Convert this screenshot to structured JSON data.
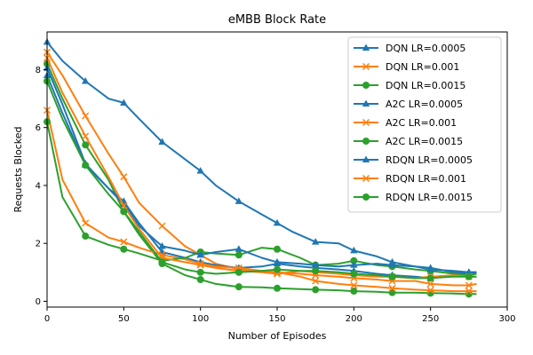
{
  "chart_data": {
    "type": "line",
    "title": "eMBB Block Rate",
    "xlabel": "Number of Episodes",
    "ylabel": "Requests Blocked",
    "xlim": [
      0,
      300
    ],
    "ylim": [
      -0.2,
      9.3
    ],
    "xticks": [
      0,
      50,
      100,
      150,
      200,
      250,
      300
    ],
    "yticks": [
      0,
      2,
      4,
      6,
      8
    ],
    "grid": false,
    "legend_position": "top-right",
    "colors": {
      "blue": "#1f77b4",
      "orange": "#ff7f0e",
      "green": "#2ca02c"
    },
    "series": [
      {
        "name": "DQN LR=0.0005",
        "color": "#1f77b4",
        "marker": "triangle",
        "points": [
          [
            0,
            8.95
          ],
          [
            10,
            8.3
          ],
          [
            25,
            7.6
          ],
          [
            40,
            7.0
          ],
          [
            50,
            6.85
          ],
          [
            60,
            6.3
          ],
          [
            75,
            5.5
          ],
          [
            90,
            4.9
          ],
          [
            100,
            4.5
          ],
          [
            110,
            4.0
          ],
          [
            125,
            3.45
          ],
          [
            140,
            3.0
          ],
          [
            150,
            2.7
          ],
          [
            160,
            2.4
          ],
          [
            175,
            2.05
          ],
          [
            190,
            2.0
          ],
          [
            200,
            1.75
          ],
          [
            215,
            1.55
          ],
          [
            225,
            1.35
          ],
          [
            240,
            1.2
          ],
          [
            250,
            1.15
          ],
          [
            265,
            1.0
          ],
          [
            275,
            0.95
          ],
          [
            280,
            0.95
          ]
        ]
      },
      {
        "name": "DQN LR=0.001",
        "color": "#ff7f0e",
        "marker": "x",
        "points": [
          [
            0,
            8.6
          ],
          [
            10,
            7.8
          ],
          [
            25,
            6.4
          ],
          [
            40,
            5.1
          ],
          [
            50,
            4.3
          ],
          [
            60,
            3.4
          ],
          [
            75,
            2.6
          ],
          [
            90,
            1.9
          ],
          [
            100,
            1.6
          ],
          [
            110,
            1.3
          ],
          [
            125,
            1.1
          ],
          [
            140,
            1.05
          ],
          [
            150,
            1.0
          ],
          [
            165,
            0.95
          ],
          [
            175,
            0.9
          ],
          [
            190,
            0.85
          ],
          [
            200,
            0.8
          ],
          [
            215,
            0.75
          ],
          [
            225,
            0.7
          ],
          [
            240,
            0.7
          ],
          [
            250,
            0.6
          ],
          [
            265,
            0.55
          ],
          [
            275,
            0.55
          ],
          [
            280,
            0.6
          ]
        ]
      },
      {
        "name": "DQN LR=0.0015",
        "color": "#2ca02c",
        "marker": "circle",
        "points": [
          [
            0,
            8.2
          ],
          [
            10,
            7.0
          ],
          [
            25,
            5.4
          ],
          [
            40,
            4.2
          ],
          [
            50,
            3.1
          ],
          [
            60,
            2.3
          ],
          [
            75,
            1.3
          ],
          [
            90,
            0.9
          ],
          [
            100,
            0.75
          ],
          [
            110,
            0.6
          ],
          [
            125,
            0.5
          ],
          [
            140,
            0.48
          ],
          [
            150,
            0.45
          ],
          [
            165,
            0.42
          ],
          [
            175,
            0.4
          ],
          [
            190,
            0.38
          ],
          [
            200,
            0.35
          ],
          [
            215,
            0.33
          ],
          [
            225,
            0.3
          ],
          [
            240,
            0.3
          ],
          [
            250,
            0.28
          ],
          [
            265,
            0.27
          ],
          [
            275,
            0.25
          ],
          [
            280,
            0.25
          ]
        ]
      },
      {
        "name": "A2C LR=0.0005",
        "color": "#1f77b4",
        "marker": "triangle",
        "points": [
          [
            0,
            7.8
          ],
          [
            10,
            6.5
          ],
          [
            25,
            4.7
          ],
          [
            40,
            3.9
          ],
          [
            50,
            3.45
          ],
          [
            60,
            2.7
          ],
          [
            75,
            1.7
          ],
          [
            90,
            1.5
          ],
          [
            100,
            1.35
          ],
          [
            110,
            1.25
          ],
          [
            125,
            1.15
          ],
          [
            140,
            1.2
          ],
          [
            150,
            1.3
          ],
          [
            165,
            1.2
          ],
          [
            175,
            1.15
          ],
          [
            190,
            1.1
          ],
          [
            200,
            1.05
          ],
          [
            215,
            0.95
          ],
          [
            225,
            0.9
          ],
          [
            240,
            0.85
          ],
          [
            250,
            0.8
          ],
          [
            265,
            0.9
          ],
          [
            275,
            1.0
          ],
          [
            280,
            1.0
          ]
        ]
      },
      {
        "name": "A2C LR=0.001",
        "color": "#ff7f0e",
        "marker": "x",
        "points": [
          [
            0,
            6.6
          ],
          [
            10,
            4.2
          ],
          [
            25,
            2.7
          ],
          [
            40,
            2.2
          ],
          [
            50,
            2.05
          ],
          [
            60,
            1.85
          ],
          [
            75,
            1.6
          ],
          [
            90,
            1.45
          ],
          [
            100,
            1.3
          ],
          [
            110,
            1.2
          ],
          [
            125,
            1.15
          ],
          [
            140,
            1.05
          ],
          [
            150,
            1.0
          ],
          [
            165,
            0.85
          ],
          [
            175,
            0.7
          ],
          [
            190,
            0.6
          ],
          [
            200,
            0.55
          ],
          [
            215,
            0.5
          ],
          [
            225,
            0.45
          ],
          [
            240,
            0.4
          ],
          [
            250,
            0.38
          ],
          [
            265,
            0.35
          ],
          [
            275,
            0.35
          ],
          [
            280,
            0.35
          ]
        ]
      },
      {
        "name": "A2C LR=0.0015",
        "color": "#2ca02c",
        "marker": "circle",
        "points": [
          [
            0,
            6.2
          ],
          [
            10,
            3.6
          ],
          [
            25,
            2.25
          ],
          [
            40,
            1.95
          ],
          [
            50,
            1.8
          ],
          [
            60,
            1.65
          ],
          [
            75,
            1.4
          ],
          [
            90,
            1.5
          ],
          [
            100,
            1.7
          ],
          [
            110,
            1.65
          ],
          [
            125,
            1.6
          ],
          [
            140,
            1.85
          ],
          [
            150,
            1.8
          ],
          [
            165,
            1.5
          ],
          [
            175,
            1.25
          ],
          [
            190,
            1.3
          ],
          [
            200,
            1.4
          ],
          [
            215,
            1.25
          ],
          [
            225,
            1.2
          ],
          [
            240,
            1.1
          ],
          [
            250,
            1.05
          ],
          [
            265,
            0.95
          ],
          [
            275,
            0.9
          ],
          [
            280,
            0.95
          ]
        ]
      },
      {
        "name": "RDQN LR=0.0005",
        "color": "#1f77b4",
        "marker": "triangle",
        "points": [
          [
            0,
            8.05
          ],
          [
            10,
            6.8
          ],
          [
            25,
            4.75
          ],
          [
            40,
            3.9
          ],
          [
            50,
            3.35
          ],
          [
            60,
            2.6
          ],
          [
            75,
            1.9
          ],
          [
            90,
            1.75
          ],
          [
            100,
            1.6
          ],
          [
            110,
            1.7
          ],
          [
            125,
            1.8
          ],
          [
            140,
            1.5
          ],
          [
            150,
            1.35
          ],
          [
            165,
            1.3
          ],
          [
            175,
            1.25
          ],
          [
            190,
            1.2
          ],
          [
            200,
            1.25
          ],
          [
            215,
            1.3
          ],
          [
            225,
            1.25
          ],
          [
            240,
            1.2
          ],
          [
            250,
            1.1
          ],
          [
            265,
            1.05
          ],
          [
            275,
            1.0
          ],
          [
            280,
            1.0
          ]
        ]
      },
      {
        "name": "RDQN LR=0.001",
        "color": "#ff7f0e",
        "marker": "x",
        "points": [
          [
            0,
            8.4
          ],
          [
            10,
            7.2
          ],
          [
            25,
            5.7
          ],
          [
            40,
            4.3
          ],
          [
            50,
            3.3
          ],
          [
            60,
            2.5
          ],
          [
            75,
            1.5
          ],
          [
            90,
            1.35
          ],
          [
            100,
            1.25
          ],
          [
            110,
            1.15
          ],
          [
            125,
            1.05
          ],
          [
            140,
            1.0
          ],
          [
            150,
            0.95
          ],
          [
            165,
            1.05
          ],
          [
            175,
            1.0
          ],
          [
            190,
            0.95
          ],
          [
            200,
            0.9
          ],
          [
            215,
            0.85
          ],
          [
            225,
            0.85
          ],
          [
            240,
            0.8
          ],
          [
            250,
            0.85
          ],
          [
            265,
            0.9
          ],
          [
            275,
            0.85
          ],
          [
            280,
            0.85
          ]
        ]
      },
      {
        "name": "RDQN LR=0.0015",
        "color": "#2ca02c",
        "marker": "circle",
        "points": [
          [
            0,
            7.6
          ],
          [
            10,
            6.3
          ],
          [
            25,
            4.7
          ],
          [
            40,
            3.7
          ],
          [
            50,
            3.1
          ],
          [
            60,
            2.4
          ],
          [
            75,
            1.35
          ],
          [
            90,
            1.1
          ],
          [
            100,
            1.0
          ],
          [
            110,
            0.95
          ],
          [
            125,
            1.0
          ],
          [
            140,
            1.05
          ],
          [
            150,
            1.1
          ],
          [
            165,
            1.05
          ],
          [
            175,
            1.05
          ],
          [
            190,
            1.0
          ],
          [
            200,
            0.95
          ],
          [
            215,
            0.9
          ],
          [
            225,
            0.85
          ],
          [
            240,
            0.8
          ],
          [
            250,
            0.8
          ],
          [
            265,
            0.85
          ],
          [
            275,
            0.85
          ],
          [
            280,
            0.85
          ]
        ]
      }
    ]
  }
}
